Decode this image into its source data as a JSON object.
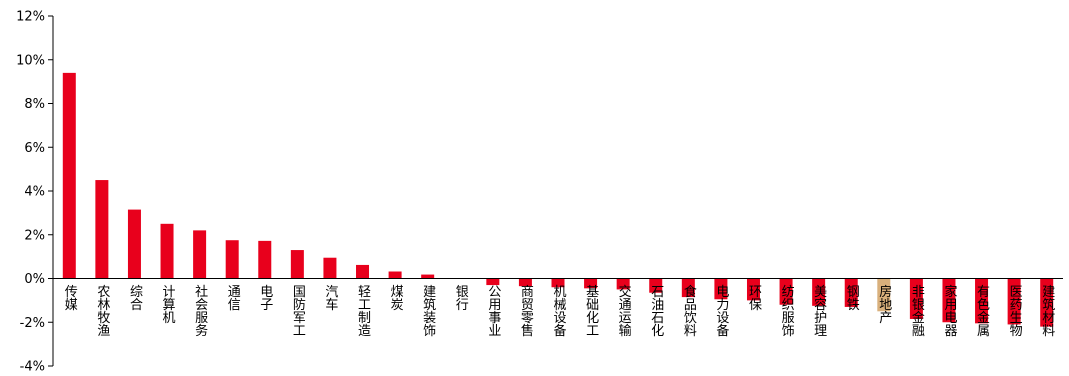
{
  "chart_data": {
    "type": "bar",
    "title": "",
    "xlabel": "",
    "ylabel": "",
    "ylim": [
      -4,
      12
    ],
    "ytick_values": [
      -4,
      -2,
      0,
      2,
      4,
      6,
      8,
      10,
      12
    ],
    "ytick_labels": [
      "-4%",
      "-2%",
      "0%",
      "2%",
      "4%",
      "6%",
      "8%",
      "10%",
      "12%"
    ],
    "categories": [
      "传媒",
      "农林牧渔",
      "综合",
      "计算机",
      "社会服务",
      "通信",
      "电子",
      "国防军工",
      "汽车",
      "轻工制造",
      "煤炭",
      "建筑装饰",
      "银行",
      "公用事业",
      "商贸零售",
      "机械设备",
      "基础化工",
      "交通运输",
      "石油石化",
      "食品饮料",
      "电力设备",
      "环保",
      "纺织服饰",
      "美容护理",
      "钢铁",
      "房地产",
      "非银金融",
      "家用电器",
      "有色金属",
      "医药生物",
      "建筑材料"
    ],
    "values": [
      9.4,
      4.5,
      3.15,
      2.5,
      2.2,
      1.75,
      1.72,
      1.3,
      0.95,
      0.62,
      0.32,
      0.18,
      0.0,
      -0.3,
      -0.35,
      -0.4,
      -0.45,
      -0.5,
      -0.65,
      -0.85,
      -0.95,
      -1.0,
      -1.2,
      -1.25,
      -1.3,
      -1.5,
      -1.85,
      -2.0,
      -2.05,
      -2.1,
      -2.2
    ],
    "colors": [
      "#e8001c",
      "#e8001c",
      "#e8001c",
      "#e8001c",
      "#e8001c",
      "#e8001c",
      "#e8001c",
      "#e8001c",
      "#e8001c",
      "#e8001c",
      "#e8001c",
      "#e8001c",
      "#e8001c",
      "#e8001c",
      "#e8001c",
      "#e8001c",
      "#e8001c",
      "#e8001c",
      "#e8001c",
      "#e8001c",
      "#e8001c",
      "#e8001c",
      "#e8001c",
      "#e8001c",
      "#e8001c",
      "#d9b07c",
      "#e8001c",
      "#e8001c",
      "#e8001c",
      "#e8001c",
      "#e8001c"
    ],
    "grid": false,
    "legend": "none"
  }
}
